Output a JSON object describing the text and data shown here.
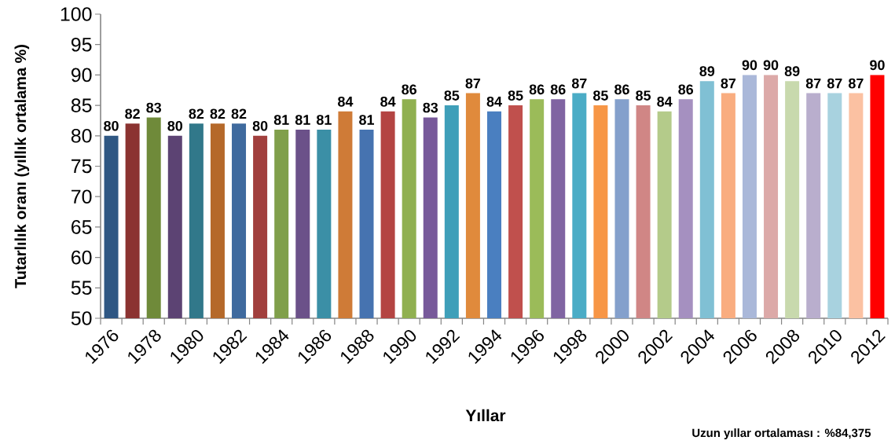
{
  "chart_data": {
    "type": "bar",
    "xlabel": "Yıllar",
    "ylabel": "Tutarlılık oranı (yıllık ortalama %)",
    "annotations": [
      "Uzun yıllar ortalaması : %84,375"
    ],
    "categories": [
      "1976",
      null,
      "1978",
      null,
      "1980",
      null,
      "1982",
      null,
      "1984",
      null,
      "1986",
      null,
      "1988",
      null,
      "1990",
      null,
      "1992",
      null,
      "1994",
      null,
      "1996",
      null,
      "1998",
      null,
      "2000",
      null,
      "2002",
      null,
      "2004",
      null,
      "2006",
      null,
      "2008",
      null,
      "2010",
      null,
      "2012"
    ],
    "values": [
      80,
      82,
      83,
      80,
      82,
      82,
      82,
      80,
      81,
      81,
      81,
      84,
      81,
      84,
      86,
      83,
      85,
      87,
      84,
      85,
      86,
      86,
      87,
      85,
      86,
      85,
      84,
      86,
      89,
      87,
      90,
      90,
      89,
      87,
      87,
      87,
      90
    ],
    "colors": [
      "#2f5783",
      "#8b3331",
      "#6f8a3a",
      "#5c4373",
      "#31788a",
      "#b5692a",
      "#3f6a9e",
      "#a13f3d",
      "#809f4b",
      "#6b5189",
      "#3b8fa6",
      "#cf7b37",
      "#4673b0",
      "#b44442",
      "#90b050",
      "#77599a",
      "#3f9fb9",
      "#e08a3c",
      "#4a7fc0",
      "#c0504d",
      "#9bbb59",
      "#8064a2",
      "#4bacc6",
      "#f79646",
      "#84a0cc",
      "#d08685",
      "#b4cb8a",
      "#a590c0",
      "#80c0d4",
      "#f9ad80",
      "#aab8d9",
      "#dca9a8",
      "#c8d9ad",
      "#b9aecd",
      "#a8d2df",
      "#fbc1a2",
      "#ff0000"
    ],
    "ylim": [
      50,
      100
    ],
    "yticks": [
      50,
      55,
      60,
      65,
      70,
      75,
      80,
      85,
      90,
      95,
      100
    ],
    "data_labels": true
  }
}
